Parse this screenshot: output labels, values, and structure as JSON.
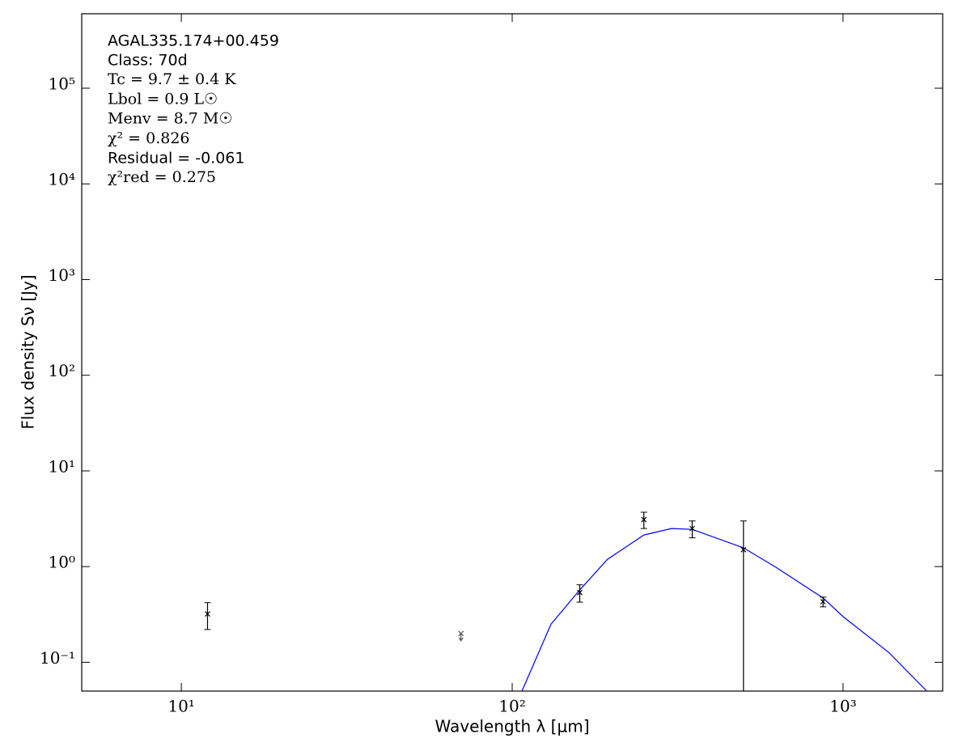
{
  "chart_data": {
    "type": "sed",
    "title": "AGAL335.174+00.459",
    "annotations": [
      "Class: 70d",
      "Tc = 9.7 ± 0.4 K",
      "Lbol = 0.9 L☉",
      "Menv = 8.7 M☉",
      "χ² = 0.826",
      "Residual = -0.061",
      "χ²red = 0.275"
    ],
    "xlabel": "Wavelength λ [μm]",
    "ylabel": "Flux density Sν [Jy]",
    "xscale": "log",
    "yscale": "log",
    "xlim": [
      5,
      2000
    ],
    "ylim": [
      0.05,
      600000
    ],
    "xticks": [
      {
        "value": 10,
        "label": "10¹"
      },
      {
        "value": 100,
        "label": "10²"
      },
      {
        "value": 1000,
        "label": "10³"
      }
    ],
    "yticks": [
      {
        "value": 0.1,
        "label": "10⁻¹"
      },
      {
        "value": 1,
        "label": "10⁰"
      },
      {
        "value": 10,
        "label": "10¹"
      },
      {
        "value": 100,
        "label": "10²"
      },
      {
        "value": 1000,
        "label": "10³"
      },
      {
        "value": 10000,
        "label": "10⁴"
      },
      {
        "value": 100000,
        "label": "10⁵"
      }
    ],
    "points": {
      "color": "#000000",
      "x": [
        12,
        160,
        250,
        350,
        500,
        870
      ],
      "values": [
        0.32,
        0.535,
        3.1,
        2.5,
        1.5,
        0.43
      ],
      "errors": [
        0.1,
        0.11,
        0.6,
        0.5,
        1.5,
        0.05
      ]
    },
    "upper_limits": {
      "color": "#555555",
      "x": [
        70
      ],
      "values": [
        0.2
      ]
    },
    "model": {
      "color": "#0000ff",
      "x": [
        107,
        131,
        160,
        194,
        250,
        303,
        350,
        500,
        628,
        870,
        1000,
        1377,
        1790
      ],
      "values": [
        0.05,
        0.25,
        0.57,
        1.19,
        2.14,
        2.5,
        2.45,
        1.57,
        0.98,
        0.47,
        0.3,
        0.126,
        0.05
      ]
    }
  }
}
